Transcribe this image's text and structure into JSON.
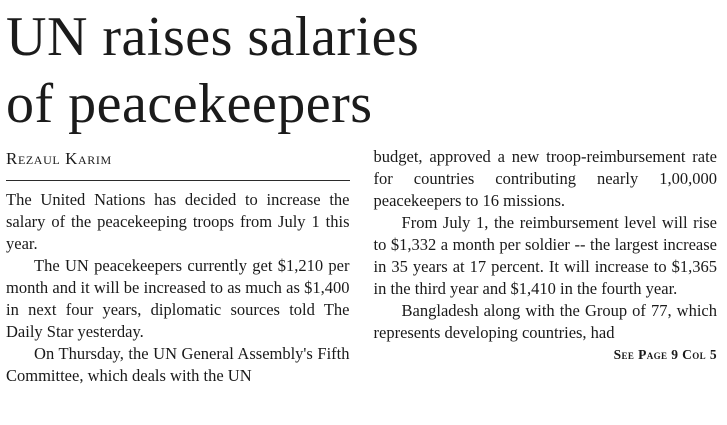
{
  "article": {
    "headline_lines": [
      "UN raises salaries",
      "of peacekeepers"
    ],
    "byline": "Rezaul Karim",
    "left_column": [
      "The United Nations has decided to increase the salary of the peacekeeping troops from July 1 this year.",
      "The UN peacekeepers currently get $1,210 per month and it will be increased to as much as $1,400 in next four years, diplomatic sources told The Daily Star yesterday.",
      "On Thursday, the UN General Assembly's Fifth Committee, which deals with the UN"
    ],
    "right_column": [
      "budget, approved a new troop-reimbursement rate for countries contributing nearly 1,00,000 peacekeepers to 16 missions.",
      "From July 1, the reimbursement level will rise to $1,332 a month per soldier -- the largest increase in 35 years at 17 percent. It will increase to $1,365 in the third year and $1,410 in the fourth year.",
      "Bangladesh along with the Group of 77, which represents developing countries, had"
    ],
    "continuation": "See Page 9 Col 5",
    "colors": {
      "background": "#ffffff",
      "ink": "#1a1a1a"
    }
  }
}
